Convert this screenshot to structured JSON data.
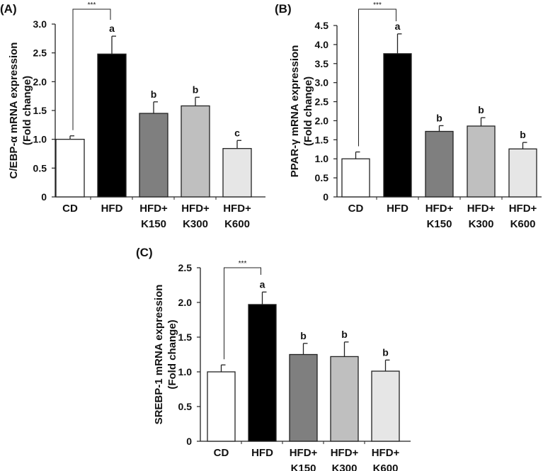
{
  "chart_data": [
    {
      "type": "bar",
      "panel_label": "(A)",
      "ylabel": [
        "C/EBP-α mRNA expression",
        "(Fold change)"
      ],
      "categories": [
        [
          "CD"
        ],
        [
          "HFD"
        ],
        [
          "HFD+",
          "K150"
        ],
        [
          "HFD+",
          "K300"
        ],
        [
          "HFD+",
          "K600"
        ]
      ],
      "values": [
        1.0,
        2.48,
        1.45,
        1.58,
        0.84
      ],
      "errors": [
        0.06,
        0.31,
        0.2,
        0.15,
        0.14
      ],
      "letters": [
        "",
        "a",
        "b",
        "b",
        "c"
      ],
      "ylim": [
        0,
        3.0
      ],
      "yticks": [
        "0",
        "0.5",
        "1.0",
        "1.5",
        "2.0",
        "2.5",
        "3.0"
      ],
      "significance": {
        "from": "CD",
        "to": "HFD",
        "label": "***"
      },
      "grid": false
    },
    {
      "type": "bar",
      "panel_label": "(B)",
      "ylabel": [
        "PPAR-γ mRNA expression",
        "(Fold change)"
      ],
      "categories": [
        [
          "CD"
        ],
        [
          "HFD"
        ],
        [
          "HFD+",
          "K150"
        ],
        [
          "HFD+",
          "K300"
        ],
        [
          "HFD+",
          "K600"
        ]
      ],
      "values": [
        1.0,
        3.76,
        1.72,
        1.86,
        1.26
      ],
      "errors": [
        0.18,
        0.52,
        0.15,
        0.22,
        0.17
      ],
      "letters": [
        "",
        "a",
        "b",
        "b",
        "b"
      ],
      "ylim": [
        0,
        4.5
      ],
      "yticks": [
        "0",
        "0.5",
        "1.0",
        "1.5",
        "2.0",
        "2.5",
        "3.0",
        "3.5",
        "4.0",
        "4.5"
      ],
      "significance": {
        "from": "CD",
        "to": "HFD",
        "label": "***"
      },
      "grid": false
    },
    {
      "type": "bar",
      "panel_label": "(C)",
      "ylabel": [
        "SREBP-1 mRNA expression",
        "(Fold change)"
      ],
      "categories": [
        [
          "CD"
        ],
        [
          "HFD"
        ],
        [
          "HFD+",
          "K150"
        ],
        [
          "HFD+",
          "K300"
        ],
        [
          "HFD+",
          "K600"
        ]
      ],
      "values": [
        1.0,
        1.97,
        1.25,
        1.22,
        1.01
      ],
      "errors": [
        0.1,
        0.18,
        0.16,
        0.21,
        0.16
      ],
      "letters": [
        "",
        "a",
        "b",
        "b",
        "b"
      ],
      "ylim": [
        0,
        2.5
      ],
      "yticks": [
        "0",
        "0.5",
        "1.0",
        "1.5",
        "2.0",
        "2.5"
      ],
      "significance": {
        "from": "CD",
        "to": "HFD",
        "label": "***"
      },
      "grid": false
    }
  ],
  "colors": {
    "bars": [
      "#ffffff",
      "#000000",
      "#7f7f7f",
      "#bfbfbf",
      "#e6e6e6"
    ],
    "stroke": "#222222"
  }
}
